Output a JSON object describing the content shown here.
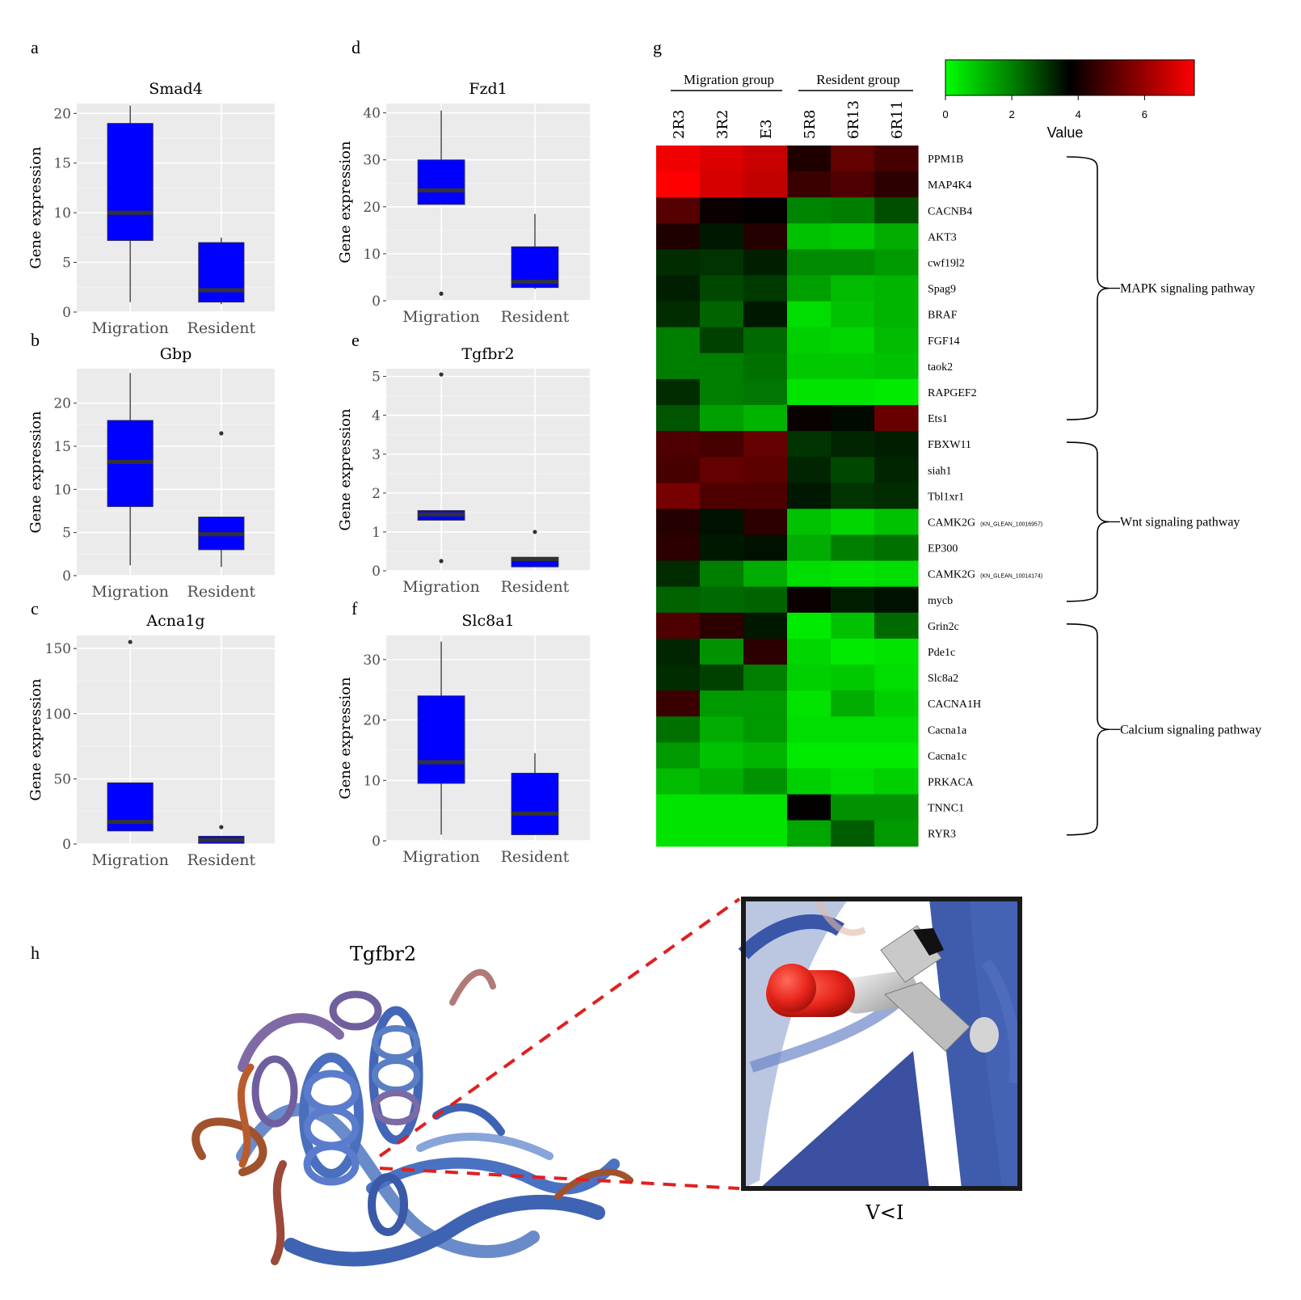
{
  "panel_letters": {
    "a": "a",
    "b": "b",
    "c": "c",
    "d": "d",
    "e": "e",
    "f": "f",
    "g": "g",
    "h": "h"
  },
  "y_axis_label": "Gene expression",
  "box_color": "#0000ff",
  "chart_data": [
    {
      "id": "a",
      "type": "box",
      "title": "Smad4",
      "categories": [
        "Migration",
        "Resident"
      ],
      "ylim": [
        0,
        21
      ],
      "yticks": [
        0,
        5,
        10,
        15,
        20
      ],
      "boxes": [
        {
          "min": 1.0,
          "q1": 7.2,
          "median": 10.0,
          "q3": 19.0,
          "max": 20.8,
          "outliers": []
        },
        {
          "min": 0.8,
          "q1": 1.0,
          "median": 2.2,
          "q3": 7.0,
          "max": 7.5,
          "outliers": []
        }
      ]
    },
    {
      "id": "b",
      "type": "box",
      "title": "Gbp",
      "categories": [
        "Migration",
        "Resident"
      ],
      "ylim": [
        0,
        24
      ],
      "yticks": [
        0,
        5,
        10,
        15,
        20
      ],
      "boxes": [
        {
          "min": 1.2,
          "q1": 8.0,
          "median": 13.2,
          "q3": 18.0,
          "max": 23.5,
          "outliers": []
        },
        {
          "min": 1.0,
          "q1": 3.0,
          "median": 4.8,
          "q3": 6.8,
          "max": 6.8,
          "outliers": [
            16.5
          ]
        }
      ]
    },
    {
      "id": "c",
      "type": "box",
      "title": "Acna1g",
      "categories": [
        "Migration",
        "Resident"
      ],
      "ylim": [
        0,
        160
      ],
      "yticks": [
        0,
        50,
        100,
        150
      ],
      "boxes": [
        {
          "min": 10,
          "q1": 10,
          "median": 17,
          "q3": 47,
          "max": 47,
          "outliers": [
            155
          ]
        },
        {
          "min": 0.5,
          "q1": 0.5,
          "median": 3,
          "q3": 6,
          "max": 6,
          "outliers": [
            13
          ]
        }
      ]
    },
    {
      "id": "d",
      "type": "box",
      "title": "Fzd1",
      "categories": [
        "Migration",
        "Resident"
      ],
      "ylim": [
        0,
        42
      ],
      "yticks": [
        0,
        10,
        20,
        30,
        40
      ],
      "boxes": [
        {
          "min": 20.5,
          "q1": 20.5,
          "median": 23.5,
          "q3": 30,
          "max": 40.5,
          "outliers": [
            1.5
          ]
        },
        {
          "min": 2.5,
          "q1": 2.8,
          "median": 4,
          "q3": 11.5,
          "max": 18.5,
          "outliers": []
        }
      ]
    },
    {
      "id": "e",
      "type": "box",
      "title": "Tgfbr2",
      "categories": [
        "Migration",
        "Resident"
      ],
      "ylim": [
        0,
        5.2
      ],
      "yticks": [
        0,
        1,
        2,
        3,
        4,
        5
      ],
      "boxes": [
        {
          "min": 1.3,
          "q1": 1.3,
          "median": 1.45,
          "q3": 1.55,
          "max": 1.55,
          "outliers": [
            5.05,
            0.25
          ]
        },
        {
          "min": 0.1,
          "q1": 0.1,
          "median": 0.3,
          "q3": 0.35,
          "max": 0.35,
          "outliers": [
            1.0
          ]
        }
      ]
    },
    {
      "id": "f",
      "type": "box",
      "title": "Slc8a1",
      "categories": [
        "Migration",
        "Resident"
      ],
      "ylim": [
        0,
        34
      ],
      "yticks": [
        0,
        10,
        20,
        30
      ],
      "boxes": [
        {
          "min": 1,
          "q1": 9.5,
          "median": 13,
          "q3": 24,
          "max": 33,
          "outliers": []
        },
        {
          "min": 1,
          "q1": 1,
          "median": 4.5,
          "q3": 11.2,
          "max": 14.5,
          "outliers": []
        }
      ]
    },
    {
      "id": "g",
      "type": "heatmap",
      "samples": [
        "2R3",
        "3R2",
        "E3",
        "5R8",
        "6R13",
        "6R11"
      ],
      "groups": [
        {
          "name": "Migration group"
        },
        {
          "name": "Resident group"
        }
      ],
      "colorbar": {
        "title": "Value",
        "ticks": [
          0,
          2,
          4,
          6
        ],
        "min": 0,
        "max": 7.5,
        "colors": [
          "#00ff00",
          "#000000",
          "#ff0000"
        ]
      },
      "genes": [
        {
          "name": "PPM1B",
          "values": [
            7.3,
            7.0,
            6.7,
            4.2,
            5.2,
            4.8
          ]
        },
        {
          "name": "MAP4K4",
          "values": [
            7.5,
            6.9,
            6.6,
            4.6,
            4.9,
            4.4
          ]
        },
        {
          "name": "CACNB4",
          "values": [
            5.0,
            3.9,
            3.8,
            1.8,
            1.9,
            2.6
          ]
        },
        {
          "name": "AKT3",
          "values": [
            4.2,
            3.4,
            4.3,
            0.9,
            0.8,
            1.2
          ]
        },
        {
          "name": "cwf19l2",
          "values": [
            3.1,
            3.0,
            3.3,
            1.7,
            1.7,
            1.5
          ]
        },
        {
          "name": "Spag9",
          "values": [
            3.3,
            2.7,
            2.9,
            1.4,
            1.0,
            1.1
          ]
        },
        {
          "name": "BRAF",
          "values": [
            3.1,
            2.3,
            3.4,
            0.5,
            0.9,
            1.1
          ]
        },
        {
          "name": "FGF14",
          "values": [
            1.9,
            2.8,
            2.2,
            0.7,
            0.6,
            1.0
          ]
        },
        {
          "name": "taok2",
          "values": [
            1.9,
            1.9,
            2.1,
            0.8,
            0.8,
            0.9
          ]
        },
        {
          "name": "RAPGEF2",
          "values": [
            3.1,
            1.9,
            2.0,
            0.4,
            0.4,
            0.3
          ]
        },
        {
          "name": "Ets1",
          "values": [
            2.5,
            1.4,
            1.1,
            3.9,
            3.6,
            5.3
          ]
        },
        {
          "name": "FBXW11",
          "values": [
            4.9,
            4.8,
            5.2,
            3.0,
            3.2,
            3.3
          ]
        },
        {
          "name": "siah1",
          "values": [
            4.8,
            5.2,
            5.1,
            3.2,
            2.7,
            3.2
          ]
        },
        {
          "name": "Tbl1xr1",
          "values": [
            5.5,
            4.9,
            4.9,
            3.4,
            3.0,
            3.1
          ]
        },
        {
          "name": "CAMK2G",
          "sub": "(KN_GLEAN_10016957)",
          "values": [
            4.3,
            3.5,
            4.4,
            0.9,
            0.6,
            0.9
          ]
        },
        {
          "name": "EP300",
          "values": [
            4.4,
            3.4,
            3.5,
            1.2,
            1.9,
            2.1
          ]
        },
        {
          "name": "CAMK2G",
          "sub": "(KN_GLEAN_10014174)",
          "values": [
            3.1,
            1.9,
            1.2,
            0.5,
            0.4,
            0.5
          ]
        },
        {
          "name": "mycb",
          "values": [
            2.3,
            2.2,
            2.3,
            3.9,
            3.3,
            3.5
          ]
        },
        {
          "name": "Grin2c",
          "values": [
            4.9,
            4.4,
            3.4,
            0.3,
            0.9,
            2.2
          ]
        },
        {
          "name": "Pde1c",
          "values": [
            3.2,
            1.6,
            4.4,
            0.6,
            0.3,
            0.4
          ]
        },
        {
          "name": "Slc8a2",
          "values": [
            3.1,
            2.8,
            1.9,
            0.7,
            0.8,
            0.5
          ]
        },
        {
          "name": "CACNA1H",
          "values": [
            4.6,
            1.5,
            1.5,
            0.4,
            1.2,
            0.7
          ]
        },
        {
          "name": "Cacna1a",
          "values": [
            2.1,
            1.2,
            1.5,
            0.5,
            0.5,
            0.5
          ]
        },
        {
          "name": "Cacna1c",
          "values": [
            1.5,
            0.9,
            1.1,
            0.3,
            0.3,
            0.3
          ]
        },
        {
          "name": "PRKACA",
          "values": [
            1.0,
            1.2,
            1.6,
            0.7,
            0.5,
            0.7
          ]
        },
        {
          "name": "TNNC1",
          "values": [
            0.4,
            0.4,
            0.4,
            3.8,
            1.6,
            1.6
          ]
        },
        {
          "name": "RYR3",
          "values": [
            0.4,
            0.4,
            0.4,
            1.3,
            2.4,
            1.5
          ]
        }
      ],
      "pathways": [
        {
          "name": "MAPK signaling pathway",
          "from": 0,
          "to": 10
        },
        {
          "name": "Wnt signaling pathway",
          "from": 11,
          "to": 17
        },
        {
          "name": "Calcium signaling pathway",
          "from": 18,
          "to": 26
        }
      ]
    }
  ],
  "panel_h": {
    "title": "Tgfbr2",
    "mutation": "V<I"
  }
}
